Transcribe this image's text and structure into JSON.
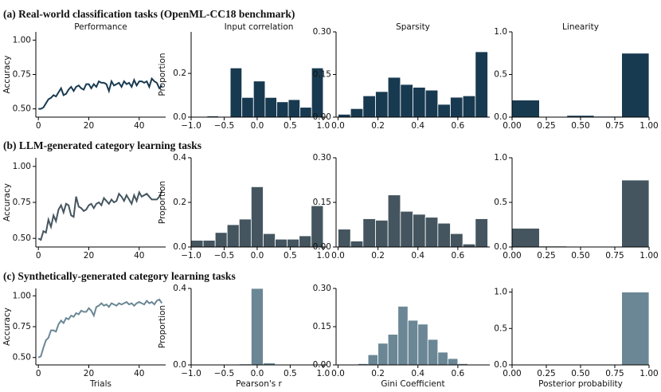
{
  "row_titles": [
    "(a) Real-world classification tasks (OpenML-CC18 benchmark)",
    "(b) LLM-generated category learning tasks",
    "(c) Synthetically-generated category learning tasks"
  ],
  "chart_data": [
    {
      "type": "line",
      "title": "Performance",
      "ylabel": "Accuracy",
      "color": "#183a50",
      "xlim": [
        -1,
        50.5
      ],
      "ylim": [
        0.44,
        1.06
      ],
      "xticks": [
        0,
        20,
        40
      ],
      "yticks": [
        {
          "value": 0.5,
          "label": "0.50"
        },
        {
          "value": 0.75,
          "label": "0.75"
        },
        {
          "value": 1.0,
          "label": "1.00"
        }
      ],
      "x": [
        0,
        1,
        2,
        3,
        4,
        5,
        6,
        7,
        8,
        9,
        10,
        11,
        12,
        13,
        14,
        15,
        16,
        17,
        18,
        19,
        20,
        21,
        22,
        23,
        24,
        25,
        26,
        27,
        28,
        29,
        30,
        31,
        32,
        33,
        34,
        35,
        36,
        37,
        38,
        39,
        40,
        41,
        42,
        43,
        44,
        45,
        46,
        47,
        48,
        49
      ],
      "values": [
        0.5,
        0.5,
        0.51,
        0.54,
        0.57,
        0.58,
        0.6,
        0.59,
        0.62,
        0.65,
        0.6,
        0.61,
        0.64,
        0.66,
        0.63,
        0.66,
        0.67,
        0.65,
        0.64,
        0.68,
        0.68,
        0.65,
        0.68,
        0.66,
        0.7,
        0.69,
        0.69,
        0.68,
        0.63,
        0.7,
        0.67,
        0.68,
        0.69,
        0.66,
        0.7,
        0.68,
        0.69,
        0.66,
        0.71,
        0.67,
        0.7,
        0.7,
        0.69,
        0.7,
        0.66,
        0.72,
        0.7,
        0.69,
        0.65,
        0.67
      ]
    },
    {
      "type": "histogram",
      "title": "Input correlation",
      "ylabel": "Proportion",
      "color": "#183a50",
      "xlim": [
        -1,
        1.05
      ],
      "ylim": [
        0,
        0.39
      ],
      "xticks": [
        {
          "value": -1,
          "label": "−1.0"
        },
        {
          "value": -0.5,
          "label": "−0.5"
        },
        {
          "value": 0,
          "label": "0.0"
        },
        {
          "value": 0.5,
          "label": "0.5"
        },
        {
          "value": 1,
          "label": "1.0"
        }
      ],
      "yticks": [
        {
          "value": 0,
          "label": "0.0"
        },
        0.2
      ],
      "bins": [
        -0.76,
        -0.584,
        -0.408,
        -0.232,
        -0.056,
        0.12,
        0.296,
        0.472,
        0.648,
        0.824,
        1.0
      ],
      "values": [
        0.005,
        0,
        0.225,
        0.09,
        0.165,
        0.09,
        0.07,
        0.08,
        0.045,
        0.225
      ]
    },
    {
      "type": "histogram",
      "title": "Sparsity",
      "color": "#183a50",
      "xlim": [
        -0.01,
        0.76
      ],
      "ylim": [
        0,
        0.3
      ],
      "xticks": [
        {
          "value": 0,
          "label": "0.0"
        },
        0.2,
        0.4,
        0.6
      ],
      "yticks": [
        {
          "value": 0,
          "label": "0.00"
        },
        0.15,
        {
          "value": 0.3,
          "label": "0.30"
        }
      ],
      "bins": [
        0,
        0.0625,
        0.125,
        0.1875,
        0.25,
        0.3125,
        0.375,
        0.4375,
        0.5,
        0.5625,
        0.625,
        0.6875,
        0.75
      ],
      "values": [
        0.01,
        0.03,
        0.075,
        0.09,
        0.14,
        0.115,
        0.105,
        0.095,
        0.045,
        0.07,
        0.075,
        0.23
      ]
    },
    {
      "type": "histogram",
      "title": "Linearity",
      "color": "#183a50",
      "xlim": [
        0,
        1
      ],
      "ylim": [
        0,
        1.0
      ],
      "xticks": [
        {
          "value": 0,
          "label": "0.00"
        },
        0.25,
        {
          "value": 0.5,
          "label": "0.50"
        },
        0.75,
        {
          "value": 1,
          "label": "1.00"
        }
      ],
      "yticks": [
        {
          "value": 0,
          "label": "0.0"
        },
        0.5,
        {
          "value": 1,
          "label": "1.0"
        }
      ],
      "bins": [
        0,
        0.2,
        0.4,
        0.6,
        0.8,
        1.0
      ],
      "values": [
        0.2,
        0,
        0.02,
        0.01,
        0.75
      ]
    },
    {
      "type": "line",
      "ylabel": "Accuracy",
      "color": "#44555f",
      "xlim": [
        -1,
        50.5
      ],
      "ylim": [
        0.44,
        1.06
      ],
      "xticks": [
        0,
        20,
        40
      ],
      "yticks": [
        {
          "value": 0.5,
          "label": "0.50"
        },
        {
          "value": 0.75,
          "label": "0.75"
        },
        {
          "value": 1.0,
          "label": "1.00"
        }
      ],
      "x": [
        0,
        1,
        2,
        3,
        4,
        5,
        6,
        7,
        8,
        9,
        10,
        11,
        12,
        13,
        14,
        15,
        16,
        17,
        18,
        19,
        20,
        21,
        22,
        23,
        24,
        25,
        26,
        27,
        28,
        29,
        30,
        31,
        32,
        33,
        34,
        35,
        36,
        37,
        38,
        39,
        40,
        41,
        42,
        43,
        44,
        45,
        46,
        47,
        48,
        49
      ],
      "values": [
        0.5,
        0.49,
        0.55,
        0.54,
        0.63,
        0.58,
        0.66,
        0.62,
        0.7,
        0.73,
        0.68,
        0.74,
        0.73,
        0.66,
        0.65,
        0.79,
        0.72,
        0.71,
        0.69,
        0.7,
        0.73,
        0.74,
        0.71,
        0.74,
        0.75,
        0.73,
        0.78,
        0.76,
        0.74,
        0.77,
        0.75,
        0.76,
        0.81,
        0.79,
        0.76,
        0.8,
        0.77,
        0.74,
        0.8,
        0.76,
        0.82,
        0.79,
        0.8,
        0.81,
        0.79,
        0.77,
        0.77,
        0.77,
        0.79,
        0.83
      ]
    },
    {
      "type": "histogram",
      "ylabel": "Proportion",
      "color": "#44555f",
      "xlim": [
        -1,
        1.05
      ],
      "ylim": [
        0,
        0.4
      ],
      "xticks": [
        {
          "value": -1,
          "label": "−1.0"
        },
        {
          "value": -0.5,
          "label": "−0.5"
        },
        {
          "value": 0,
          "label": "0.0"
        },
        {
          "value": 0.5,
          "label": "0.5"
        },
        {
          "value": 1,
          "label": "1.0"
        }
      ],
      "yticks": [
        {
          "value": 0,
          "label": "0.0"
        },
        0.2,
        0.4
      ],
      "bins": [
        -1,
        -0.818,
        -0.636,
        -0.455,
        -0.273,
        -0.091,
        0.091,
        0.273,
        0.455,
        0.636,
        0.818,
        1.0
      ],
      "values": [
        0.03,
        0.03,
        0.065,
        0.1,
        0.125,
        0.27,
        0.06,
        0.035,
        0.035,
        0.05,
        0.185
      ]
    },
    {
      "type": "histogram",
      "color": "#44555f",
      "xlim": [
        -0.01,
        0.76
      ],
      "ylim": [
        0,
        0.3
      ],
      "xticks": [
        {
          "value": 0,
          "label": "0.0"
        },
        0.2,
        0.4,
        0.6
      ],
      "yticks": [
        {
          "value": 0,
          "label": "0.00"
        },
        0.15,
        {
          "value": 0.3,
          "label": "0.30"
        }
      ],
      "bins": [
        0,
        0.0625,
        0.125,
        0.1875,
        0.25,
        0.3125,
        0.375,
        0.4375,
        0.5,
        0.5625,
        0.625,
        0.6875,
        0.75
      ],
      "values": [
        0.06,
        0.02,
        0.095,
        0.09,
        0.175,
        0.12,
        0.11,
        0.1,
        0.08,
        0.045,
        0.01,
        0.095
      ]
    },
    {
      "type": "histogram",
      "color": "#44555f",
      "xlim": [
        0,
        1
      ],
      "ylim": [
        0,
        1.0
      ],
      "xticks": [
        {
          "value": 0,
          "label": "0.00"
        },
        0.25,
        {
          "value": 0.5,
          "label": "0.50"
        },
        0.75,
        {
          "value": 1,
          "label": "1.00"
        }
      ],
      "yticks": [
        {
          "value": 0,
          "label": "0.0"
        },
        0.5,
        {
          "value": 1,
          "label": "1.0"
        }
      ],
      "bins": [
        0,
        0.2,
        0.4,
        0.6,
        0.8,
        1.0
      ],
      "values": [
        0.21,
        0.01,
        0,
        0,
        0.75
      ]
    },
    {
      "type": "line",
      "ylabel": "Accuracy",
      "xlabel": "Trials",
      "color": "#6b8795",
      "xlim": [
        -1,
        50.5
      ],
      "ylim": [
        0.44,
        1.06
      ],
      "xticks": [
        0,
        20,
        40
      ],
      "yticks": [
        {
          "value": 0.5,
          "label": "0.50"
        },
        {
          "value": 0.75,
          "label": "0.75"
        },
        {
          "value": 1.0,
          "label": "1.00"
        }
      ],
      "x": [
        0,
        1,
        2,
        3,
        4,
        5,
        6,
        7,
        8,
        9,
        10,
        11,
        12,
        13,
        14,
        15,
        16,
        17,
        18,
        19,
        20,
        21,
        22,
        23,
        24,
        25,
        26,
        27,
        28,
        29,
        30,
        31,
        32,
        33,
        34,
        35,
        36,
        37,
        38,
        39,
        40,
        41,
        42,
        43,
        44,
        45,
        46,
        47,
        48,
        49
      ],
      "values": [
        0.5,
        0.51,
        0.58,
        0.64,
        0.66,
        0.72,
        0.72,
        0.71,
        0.77,
        0.8,
        0.78,
        0.82,
        0.81,
        0.84,
        0.83,
        0.86,
        0.85,
        0.88,
        0.87,
        0.87,
        0.9,
        0.88,
        0.84,
        0.91,
        0.92,
        0.94,
        0.92,
        0.93,
        0.91,
        0.94,
        0.93,
        0.92,
        0.94,
        0.93,
        0.94,
        0.95,
        0.93,
        0.94,
        0.92,
        0.94,
        0.95,
        0.94,
        0.93,
        0.96,
        0.94,
        0.95,
        0.93,
        0.96,
        0.97,
        0.94
      ]
    },
    {
      "type": "histogram",
      "ylabel": "Proportion",
      "xlabel": "Pearson's r",
      "color": "#6b8795",
      "xlim": [
        -1,
        1.05
      ],
      "ylim": [
        0,
        0.4
      ],
      "xticks": [
        {
          "value": -1,
          "label": "−1.0"
        },
        {
          "value": -0.5,
          "label": "−0.5"
        },
        {
          "value": 0,
          "label": "0.0"
        },
        {
          "value": 0.5,
          "label": "0.5"
        },
        {
          "value": 1,
          "label": "1.0"
        }
      ],
      "yticks": [
        {
          "value": 0,
          "label": "0.0"
        },
        0.4
      ],
      "bins": [
        -1,
        -0.818,
        -0.636,
        -0.455,
        -0.273,
        -0.091,
        0.091,
        0.273,
        0.455,
        0.636,
        0.818,
        1.0
      ],
      "values": [
        0,
        0,
        0,
        0,
        0.005,
        0.4,
        0.01,
        0,
        0,
        0,
        0
      ]
    },
    {
      "type": "histogram",
      "xlabel": "Gini Coefficient",
      "color": "#6b8795",
      "xlim": [
        -0.01,
        0.76
      ],
      "ylim": [
        0,
        0.3
      ],
      "xticks": [
        {
          "value": 0,
          "label": "0.0"
        },
        0.2,
        0.4,
        0.6
      ],
      "yticks": [
        {
          "value": 0,
          "label": "0.00"
        },
        0.15,
        {
          "value": 0.3,
          "label": "0.30"
        }
      ],
      "bins": [
        0.1,
        0.15,
        0.2,
        0.25,
        0.3,
        0.35,
        0.4,
        0.45,
        0.5,
        0.55,
        0.6,
        0.65
      ],
      "values": [
        0.005,
        0.04,
        0.085,
        0.12,
        0.23,
        0.175,
        0.16,
        0.1,
        0.05,
        0.025,
        0.005
      ]
    },
    {
      "type": "histogram",
      "xlabel": "Posterior probability",
      "color": "#6b8795",
      "xlim": [
        0,
        1
      ],
      "ylim": [
        0,
        1.05
      ],
      "xticks": [
        {
          "value": 0,
          "label": "0.00"
        },
        0.25,
        {
          "value": 0.5,
          "label": "0.50"
        },
        0.75,
        {
          "value": 1,
          "label": "1.00"
        }
      ],
      "yticks": [
        {
          "value": 0,
          "label": "0.0"
        },
        0.5,
        {
          "value": 1,
          "label": "1.0"
        }
      ],
      "bins": [
        0,
        0.2,
        0.4,
        0.6,
        0.8,
        1.0
      ],
      "values": [
        0,
        0,
        0,
        0,
        1.0
      ]
    }
  ]
}
